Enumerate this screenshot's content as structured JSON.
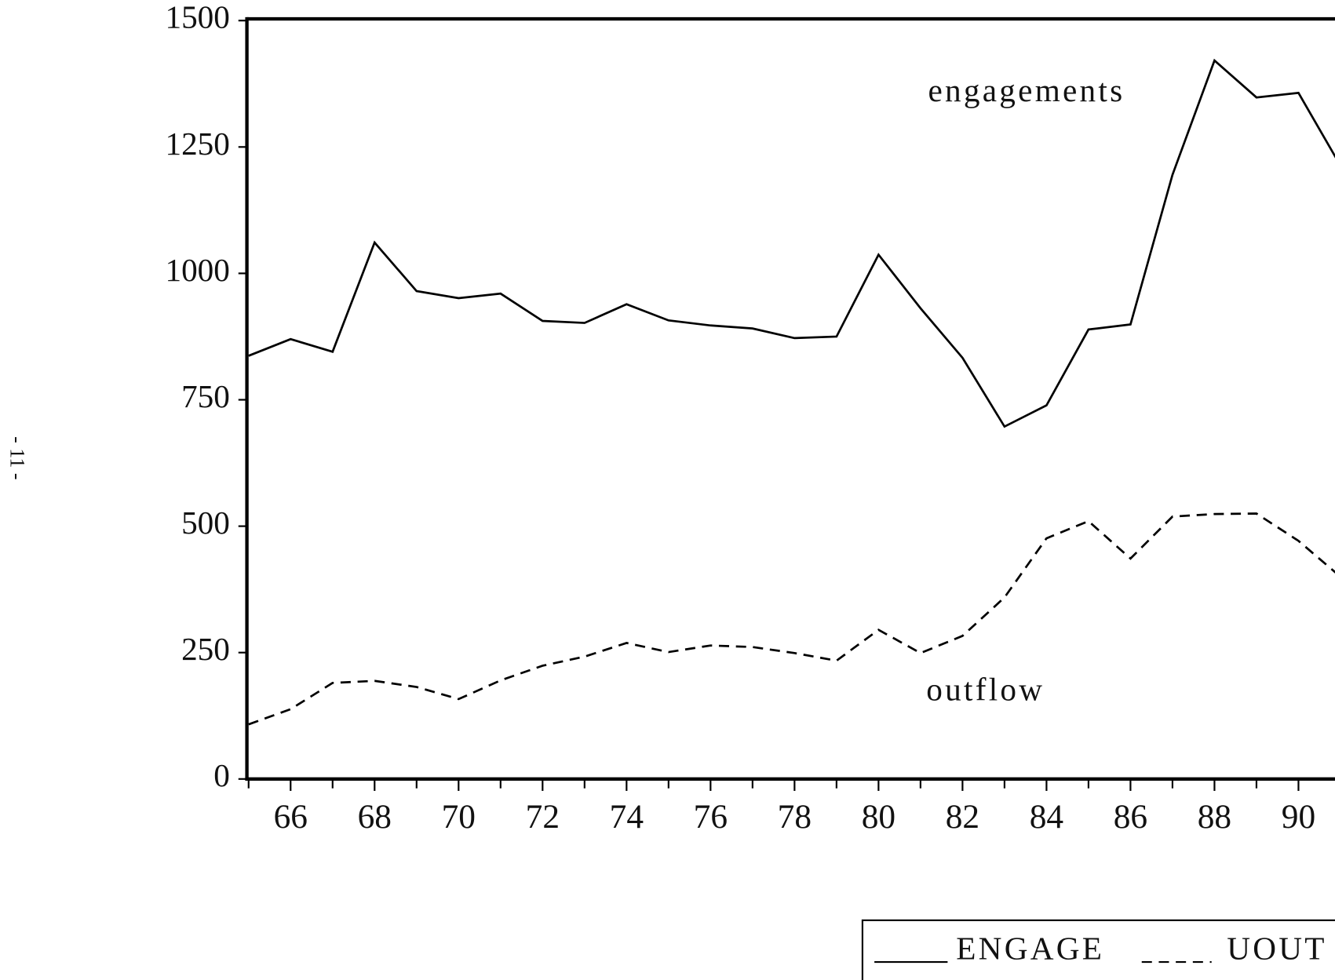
{
  "chart_data": {
    "type": "line",
    "x": [
      65,
      66,
      67,
      68,
      69,
      70,
      71,
      72,
      73,
      74,
      75,
      76,
      77,
      78,
      79,
      80,
      81,
      82,
      83,
      84,
      85,
      86,
      87,
      88,
      89,
      90,
      91
    ],
    "series": [
      {
        "name": "ENGAGE",
        "color": "#000000",
        "dash": "solid",
        "label": "engagements",
        "values": [
          837,
          870,
          845,
          1061,
          965,
          951,
          960,
          906,
          902,
          939,
          907,
          897,
          891,
          872,
          875,
          1037,
          931,
          833,
          697,
          739,
          889,
          899,
          1195,
          1421,
          1348,
          1357,
          1213
        ]
      },
      {
        "name": "UOUT",
        "color": "#000000",
        "dash": "dashed",
        "label": "outflow",
        "values": [
          108,
          138,
          190,
          194,
          182,
          158,
          195,
          224,
          242,
          269,
          251,
          264,
          261,
          249,
          234,
          295,
          249,
          283,
          359,
          476,
          510,
          436,
          519,
          524,
          525,
          471,
          400
        ]
      }
    ],
    "xlim": [
      65,
      90.87
    ],
    "ylim": [
      0,
      1500
    ],
    "xticks": [
      66,
      68,
      70,
      72,
      74,
      76,
      78,
      80,
      82,
      84,
      86,
      88,
      90
    ],
    "xminor_ticks": [
      65,
      67,
      69,
      71,
      73,
      75,
      77,
      79,
      81,
      83,
      85,
      87,
      89
    ],
    "yticks": [
      0,
      250,
      500,
      750,
      1000,
      1250,
      1500
    ],
    "legend": "bottom-right",
    "grid": false
  },
  "page": {
    "number": "- 11 -"
  }
}
